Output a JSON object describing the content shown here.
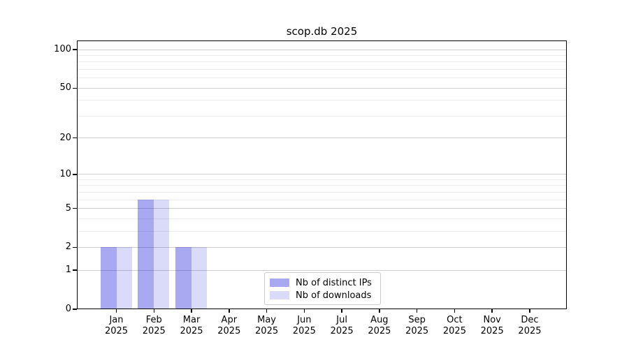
{
  "chart_data": {
    "type": "bar",
    "title": "scop.db 2025",
    "categories": [
      "Jan 2025",
      "Feb 2025",
      "Mar 2025",
      "Apr 2025",
      "May 2025",
      "Jun 2025",
      "Jul 2025",
      "Aug 2025",
      "Sep 2025",
      "Oct 2025",
      "Nov 2025",
      "Dec 2025"
    ],
    "series": [
      {
        "name": "Nb of distinct IPs",
        "color": "rgba(10,10,215,0.35)",
        "color_on_white": "#a8a8f1",
        "values": [
          2,
          6,
          2,
          0,
          0,
          0,
          0,
          0,
          0,
          0,
          0,
          0
        ]
      },
      {
        "name": "Nb of downloads",
        "color": "rgba(10,10,215,0.15)",
        "color_on_white": "#d9d9f8",
        "values": [
          2,
          6,
          2,
          0,
          0,
          0,
          0,
          0,
          0,
          0,
          0,
          0
        ]
      }
    ],
    "yscale": "log1p",
    "ylim": [
      0,
      118
    ],
    "y_major_ticks": [
      0,
      1,
      2,
      5,
      10,
      20,
      50,
      100
    ],
    "y_minor_ticks": [
      3,
      4,
      6,
      7,
      8,
      9,
      30,
      40,
      60,
      70,
      80,
      90
    ],
    "grid": "both",
    "legend": {
      "position": "lower center",
      "items": [
        "Nb of distinct IPs",
        "Nb of downloads"
      ]
    }
  },
  "colors": {
    "background": "#ffffff",
    "spine": "#000000",
    "grid_major": "#cfcfcf",
    "grid_minor": "#ededed",
    "legend_border": "#cccccc",
    "text": "#000000"
  }
}
